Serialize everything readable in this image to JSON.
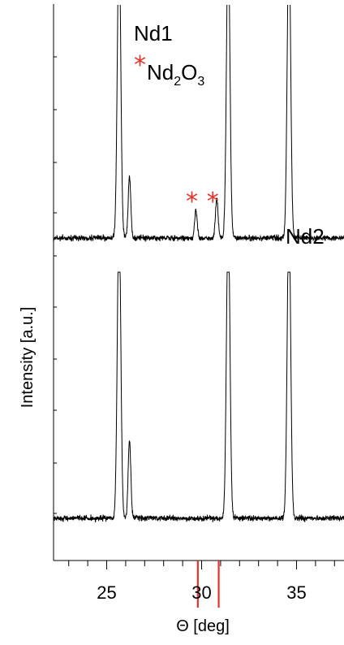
{
  "chart_data": [
    {
      "type": "line",
      "panel_label": "Nd1",
      "xlim": [
        22.2,
        37.5
      ],
      "ylim": [
        0,
        1
      ],
      "x_ticks": [
        25,
        30,
        35
      ],
      "xlabel": "Θ [deg]",
      "ylabel": "Intensity [a.u.]",
      "legend": {
        "marker": "*",
        "text_main": "Nd",
        "sub1": "2",
        "mid": "O",
        "sub2": "3",
        "color": "#e8302a"
      },
      "baseline": 0.1,
      "peaks": [
        {
          "x": 25.65,
          "height": 1.1
        },
        {
          "x": 26.2,
          "height": 0.22
        },
        {
          "x": 29.7,
          "height": 0.1
        },
        {
          "x": 30.8,
          "height": 0.14
        },
        {
          "x": 31.4,
          "height": 1.1
        },
        {
          "x": 34.6,
          "height": 1.1
        }
      ],
      "marked_peaks_x": [
        29.7,
        30.8
      ],
      "reference_lines_x": [
        29.8,
        30.9
      ],
      "reference_color": "#e8302a"
    },
    {
      "type": "line",
      "panel_label": "Nd2",
      "xlim": [
        22.2,
        37.5
      ],
      "ylim": [
        0,
        1
      ],
      "x_ticks": [
        25,
        30,
        35
      ],
      "baseline": 0.1,
      "peaks": [
        {
          "x": 25.65,
          "height": 1.1
        },
        {
          "x": 26.2,
          "height": 0.28
        },
        {
          "x": 31.4,
          "height": 1.1
        },
        {
          "x": 34.6,
          "height": 1.1
        }
      ]
    }
  ]
}
